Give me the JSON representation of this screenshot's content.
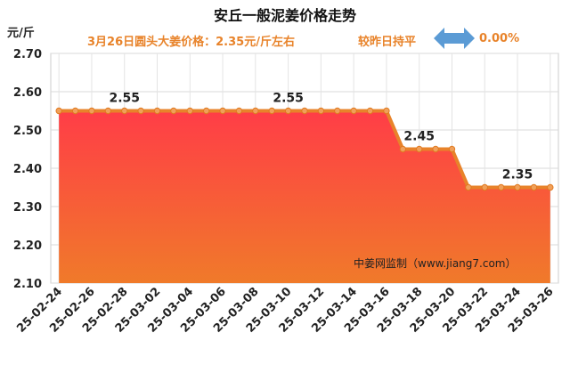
{
  "header": {
    "title": "安丘一般泥姜价格走势",
    "unit": "元/斤",
    "price_text": "3月26日圆头大姜价格：2.35元/斤左右",
    "compare_text": "较昨日持平",
    "change_text": "0.00%",
    "arrow_icon": "double-arrow-icon",
    "arrow_color": "#5b9bd5",
    "accent_color": "#e8832a"
  },
  "watermark": "中姜网监制（www.jiang7.com）",
  "chart_data": {
    "type": "area",
    "title": "安丘一般泥姜价格走势",
    "ylabel": "元/斤",
    "xlabel": "",
    "ylim": [
      2.1,
      2.7
    ],
    "yticks": [
      "2.10",
      "2.20",
      "2.30",
      "2.40",
      "2.50",
      "2.60",
      "2.70"
    ],
    "grid": true,
    "x_tick_labels": [
      "25-02-24",
      "25-02-26",
      "25-02-28",
      "25-03-02",
      "25-03-04",
      "25-03-06",
      "25-03-08",
      "25-03-10",
      "25-03-12",
      "25-03-14",
      "25-03-16",
      "25-03-18",
      "25-03-20",
      "25-03-22",
      "25-03-24",
      "25-03-26"
    ],
    "x": [
      "25-02-24",
      "25-02-25",
      "25-02-26",
      "25-02-27",
      "25-02-28",
      "25-03-01",
      "25-03-02",
      "25-03-03",
      "25-03-04",
      "25-03-05",
      "25-03-06",
      "25-03-07",
      "25-03-08",
      "25-03-09",
      "25-03-10",
      "25-03-11",
      "25-03-12",
      "25-03-13",
      "25-03-14",
      "25-03-15",
      "25-03-16",
      "25-03-17",
      "25-03-18",
      "25-03-19",
      "25-03-20",
      "25-03-21",
      "25-03-22",
      "25-03-23",
      "25-03-24",
      "25-03-25",
      "25-03-26"
    ],
    "series": [
      {
        "values": [
          2.55,
          2.55,
          2.55,
          2.55,
          2.55,
          2.55,
          2.55,
          2.55,
          2.55,
          2.55,
          2.55,
          2.55,
          2.55,
          2.55,
          2.55,
          2.55,
          2.55,
          2.55,
          2.55,
          2.55,
          2.55,
          2.45,
          2.45,
          2.45,
          2.45,
          2.35,
          2.35,
          2.35,
          2.35,
          2.35,
          2.35
        ]
      }
    ],
    "data_labels": [
      {
        "x": "25-02-28",
        "text": "2.55"
      },
      {
        "x": "25-03-10",
        "text": "2.55"
      },
      {
        "x": "25-03-18",
        "text": "2.45"
      },
      {
        "x": "25-03-24",
        "text": "2.35"
      }
    ],
    "colors": {
      "line": "#e8832a",
      "area_top": "#ff3d47",
      "area_bottom": "#f07a2a",
      "marker": "#f0a05a"
    }
  }
}
